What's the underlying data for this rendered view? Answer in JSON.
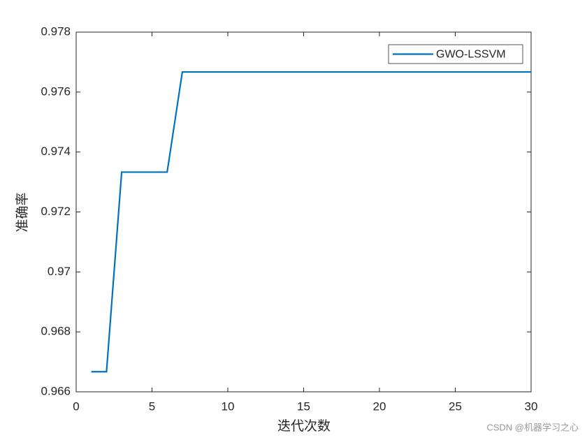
{
  "chart_data": {
    "type": "line",
    "xlabel": "迭代次数",
    "ylabel": "准确率",
    "x": [
      1,
      2,
      3,
      4,
      5,
      6,
      7,
      8,
      9,
      10,
      11,
      12,
      13,
      14,
      15,
      16,
      17,
      18,
      19,
      20,
      21,
      22,
      23,
      24,
      25,
      26,
      27,
      28,
      29,
      30
    ],
    "series": [
      {
        "name": "GWO-LSSVM",
        "color": "#0072bd",
        "values": [
          0.96667,
          0.96667,
          0.97333,
          0.97333,
          0.97333,
          0.97333,
          0.97667,
          0.97667,
          0.97667,
          0.97667,
          0.97667,
          0.97667,
          0.97667,
          0.97667,
          0.97667,
          0.97667,
          0.97667,
          0.97667,
          0.97667,
          0.97667,
          0.97667,
          0.97667,
          0.97667,
          0.97667,
          0.97667,
          0.97667,
          0.97667,
          0.97667,
          0.97667,
          0.97667
        ]
      }
    ],
    "xlim": [
      0,
      30
    ],
    "xticks": [
      0,
      5,
      10,
      15,
      20,
      25,
      30
    ],
    "ylim": [
      0.966,
      0.978
    ],
    "yticks": [
      0.966,
      0.968,
      0.97,
      0.972,
      0.974,
      0.976,
      0.978
    ],
    "legend": "upper right",
    "grid": false,
    "watermark": "CSDN @机器学习之心"
  }
}
